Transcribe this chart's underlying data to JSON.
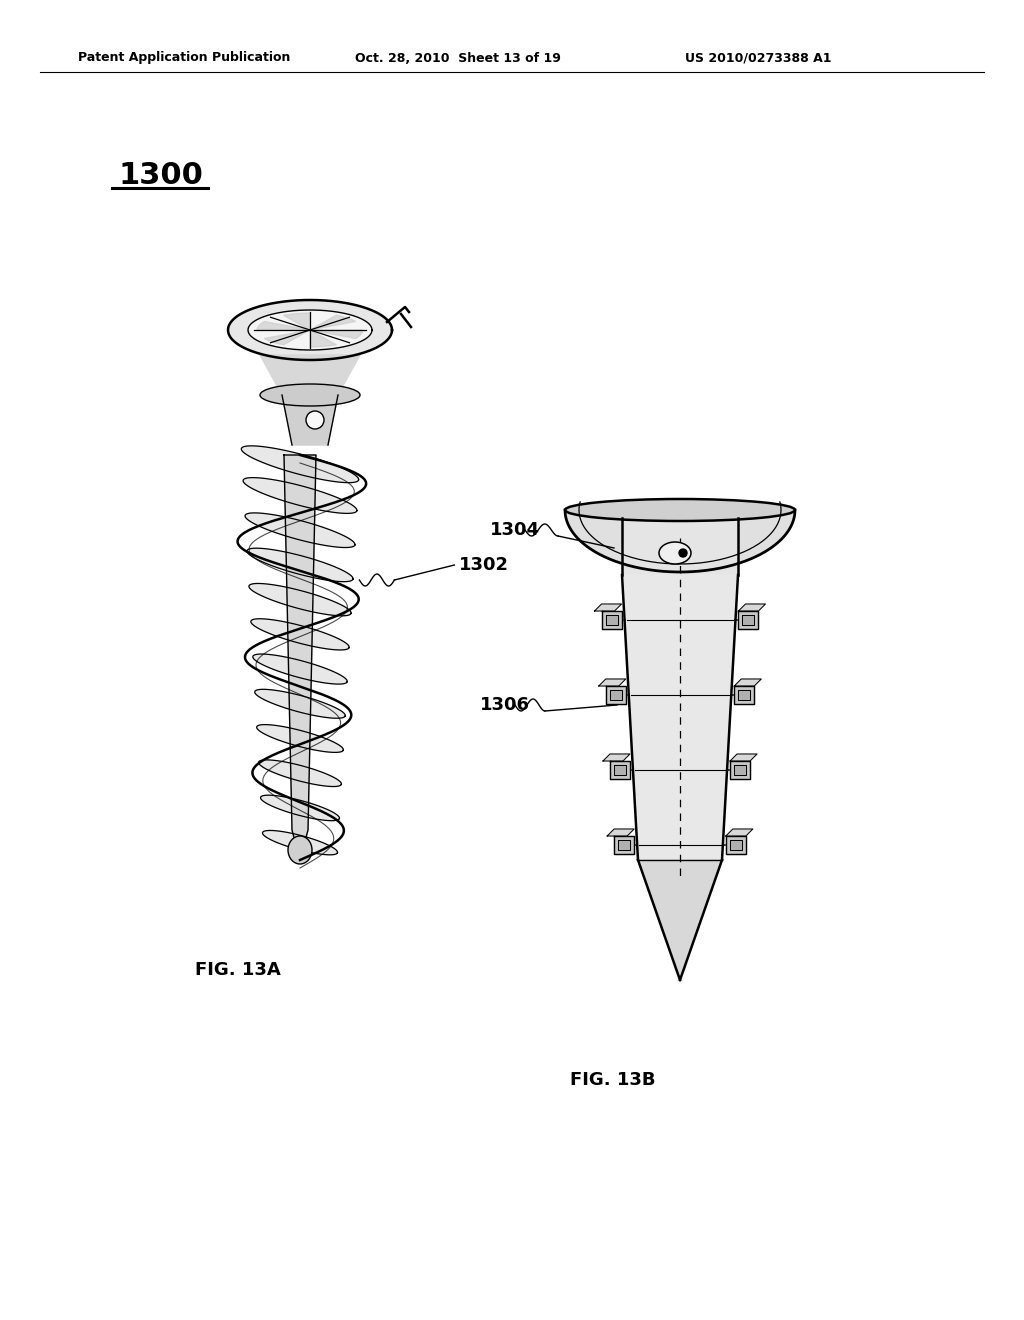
{
  "bg_color": "#ffffff",
  "header_left": "Patent Application Publication",
  "header_mid": "Oct. 28, 2010  Sheet 13 of 19",
  "header_right": "US 2010/0273388 A1",
  "fig_number_1300": "1300",
  "label_1302": "1302",
  "label_1304": "1304",
  "label_1306": "1306",
  "fig_13a": "FIG. 13A",
  "fig_13b": "FIG. 13B",
  "line_color": "#000000",
  "text_color": "#000000",
  "fill_light": "#f0f0f0",
  "fill_mid": "#d8d8d8",
  "fill_dark": "#b8b8b8"
}
